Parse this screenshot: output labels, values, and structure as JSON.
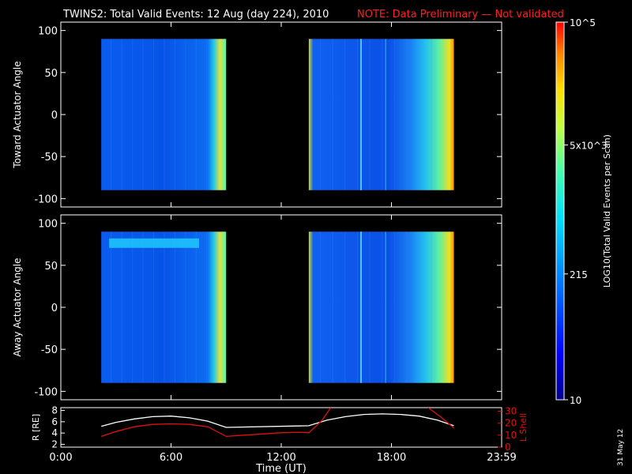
{
  "header": {
    "title": "TWINS2: Total Valid Events: 12 Aug (day 224), 2010",
    "note": "NOTE: Data Preliminary — Not validated",
    "title_color": "#ffffff",
    "note_color": "#ff2020"
  },
  "footer": {
    "date_stamp": "31 May 12"
  },
  "chart_data": [
    {
      "type": "heatmap",
      "ylabel": "Toward Actuator Angle",
      "xlim": [
        0,
        24
      ],
      "ylim": [
        -110,
        110
      ],
      "yticks": [
        -100,
        -50,
        0,
        50,
        100
      ],
      "data_blocks": [
        {
          "x": [
            2.2,
            9.0
          ],
          "y": [
            -90,
            90
          ]
        },
        {
          "x": [
            13.5,
            21.4
          ],
          "y": [
            -90,
            90
          ]
        }
      ]
    },
    {
      "type": "heatmap",
      "ylabel": "Away Actuator Angle",
      "xlim": [
        0,
        24
      ],
      "ylim": [
        -110,
        110
      ],
      "yticks": [
        -100,
        -50,
        0,
        50,
        100
      ],
      "data_blocks": [
        {
          "x": [
            2.2,
            9.0
          ],
          "y": [
            -90,
            90
          ]
        },
        {
          "x": [
            13.5,
            21.4
          ],
          "y": [
            -90,
            90
          ]
        }
      ]
    },
    {
      "type": "line",
      "xlabel": "Time (UT)",
      "xlim": [
        0,
        24
      ],
      "xticks": [
        "0:00",
        "6:00",
        "12:00",
        "18:00",
        "23:59"
      ],
      "xtick_values": [
        0,
        6,
        12,
        18,
        24
      ],
      "left_axis": {
        "label": "R [RE]",
        "ylim": [
          1.5,
          8.5
        ],
        "ticks": [
          2,
          4,
          6,
          8
        ],
        "color": "#ffffff"
      },
      "right_axis": {
        "label": "L Shell",
        "ylim": [
          0,
          33
        ],
        "ticks": [
          0,
          10,
          20,
          30
        ],
        "color": "#e01010"
      },
      "series": [
        {
          "axis": "left",
          "color": "#ffffff",
          "x": [
            2.2,
            3.0,
            4.0,
            5.0,
            6.0,
            7.0,
            8.0,
            9.0,
            13.5,
            14.5,
            15.5,
            16.5,
            17.5,
            18.5,
            19.5,
            20.5,
            21.4
          ],
          "y": [
            5.2,
            5.9,
            6.5,
            6.9,
            7.0,
            6.7,
            6.1,
            5.0,
            5.3,
            6.3,
            6.9,
            7.3,
            7.4,
            7.3,
            7.0,
            6.3,
            5.3
          ]
        },
        {
          "axis": "right",
          "color": "#e01010",
          "x": [
            2.2,
            3.0,
            4.0,
            5.0,
            6.0,
            7.0,
            8.0,
            9.0,
            10.0,
            11.0,
            12.0,
            13.0,
            13.5,
            14.2,
            14.7
          ],
          "y": [
            9,
            13,
            17,
            19,
            19.5,
            19,
            17,
            9,
            10,
            11,
            12,
            12.5,
            12,
            22,
            33
          ]
        },
        {
          "axis": "right",
          "color": "#e01010",
          "x": [
            20.0,
            20.7,
            21.4
          ],
          "y": [
            33,
            25,
            16
          ]
        }
      ]
    }
  ],
  "colorbar": {
    "label": "LOG10(Total Valid Events per Scan)",
    "ticks": [
      {
        "value": 10,
        "label": "10"
      },
      {
        "value": 215,
        "label": "215"
      },
      {
        "value": 5000,
        "label": "5x10^3"
      },
      {
        "value": 100000,
        "label": "10^5"
      }
    ],
    "range": [
      10,
      100000
    ],
    "colors": [
      "#00008c",
      "#0000ff",
      "#0080ff",
      "#00e0ff",
      "#40ffb0",
      "#c0ff40",
      "#ffe000",
      "#ff8000",
      "#ff0000"
    ]
  }
}
